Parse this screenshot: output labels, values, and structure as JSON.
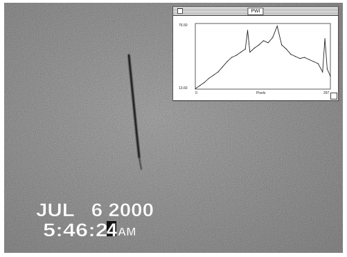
{
  "overlay": {
    "date": "JUL   6 2000",
    "time_prefix": "5:46:2",
    "time_cursor": "4",
    "ampm": "AM"
  },
  "plot_window": {
    "title": "PWI",
    "y_top": "76.50",
    "y_bottom": "13.60",
    "x_left": "0",
    "x_right": "297",
    "x_label": "Pixels"
  },
  "chart_data": {
    "type": "line",
    "xlabel": "Pixels",
    "ylabel": "",
    "xlim": [
      0,
      297
    ],
    "ylim": [
      13.6,
      76.5
    ],
    "x": [
      0,
      10,
      20,
      30,
      40,
      50,
      60,
      70,
      80,
      90,
      100,
      110,
      115,
      120,
      130,
      140,
      150,
      160,
      170,
      180,
      190,
      200,
      210,
      220,
      230,
      240,
      250,
      260,
      270,
      280,
      285,
      290,
      297
    ],
    "y": [
      14,
      17,
      20,
      24,
      27,
      30,
      35,
      40,
      44,
      46,
      49,
      52,
      70,
      49,
      53,
      56,
      60,
      58,
      63,
      74,
      56,
      52,
      47,
      45,
      43,
      44,
      42,
      40,
      38,
      30,
      62,
      33,
      26
    ]
  },
  "colors": {
    "background": "#8f8f8f",
    "streak": "#161616",
    "overlay_text": "#ffffff",
    "plot_line": "#222222"
  }
}
